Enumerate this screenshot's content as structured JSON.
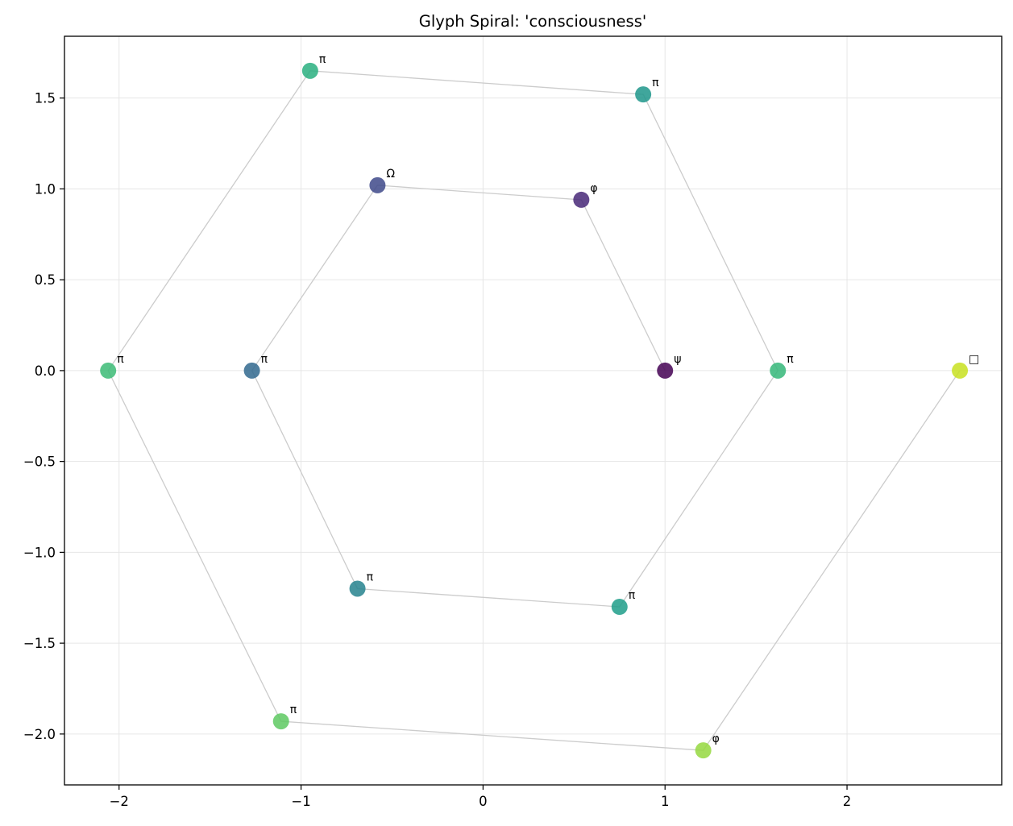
{
  "chart_data": {
    "type": "scatter",
    "title": "Glyph Spiral: 'consciousness'",
    "xlabel": "",
    "ylabel": "",
    "xlim": [
      -2.3,
      2.85
    ],
    "ylim": [
      -2.28,
      1.84
    ],
    "xticks": [
      -2,
      -1,
      0,
      1,
      2
    ],
    "xtick_labels": [
      "−2",
      "−1",
      "0",
      "1",
      "2"
    ],
    "yticks": [
      -2.0,
      -1.5,
      -1.0,
      -0.5,
      0.0,
      0.5,
      1.0,
      1.5
    ],
    "ytick_labels": [
      "−2.0",
      "−1.5",
      "−1.0",
      "−0.5",
      "0.0",
      "0.5",
      "1.0",
      "1.5"
    ],
    "grid": true,
    "legend": "none",
    "connecting_line_color": "#cccccc",
    "points": [
      {
        "x": 1.0,
        "y": 0.0,
        "label": "ψ",
        "color": "#440154"
      },
      {
        "x": 0.54,
        "y": 0.94,
        "label": "φ",
        "color": "#482878"
      },
      {
        "x": -0.58,
        "y": 1.02,
        "label": "Ω",
        "color": "#3e4989"
      },
      {
        "x": -1.27,
        "y": 0.0,
        "label": "π",
        "color": "#31688e"
      },
      {
        "x": -0.69,
        "y": -1.2,
        "label": "π",
        "color": "#26828e"
      },
      {
        "x": 0.75,
        "y": -1.3,
        "label": "π",
        "color": "#1f9e89"
      },
      {
        "x": 1.62,
        "y": 0.0,
        "label": "π",
        "color": "#35b779"
      },
      {
        "x": 0.88,
        "y": 1.52,
        "label": "π",
        "color": "#1f968b"
      },
      {
        "x": -0.95,
        "y": 1.65,
        "label": "π",
        "color": "#29af7f"
      },
      {
        "x": -2.06,
        "y": 0.0,
        "label": "π",
        "color": "#3cbb75"
      },
      {
        "x": -1.11,
        "y": -1.93,
        "label": "π",
        "color": "#5ec962"
      },
      {
        "x": 1.21,
        "y": -2.09,
        "label": "φ",
        "color": "#95d840"
      },
      {
        "x": 2.62,
        "y": 0.0,
        "label": "□",
        "color": "#c8e020"
      }
    ]
  }
}
